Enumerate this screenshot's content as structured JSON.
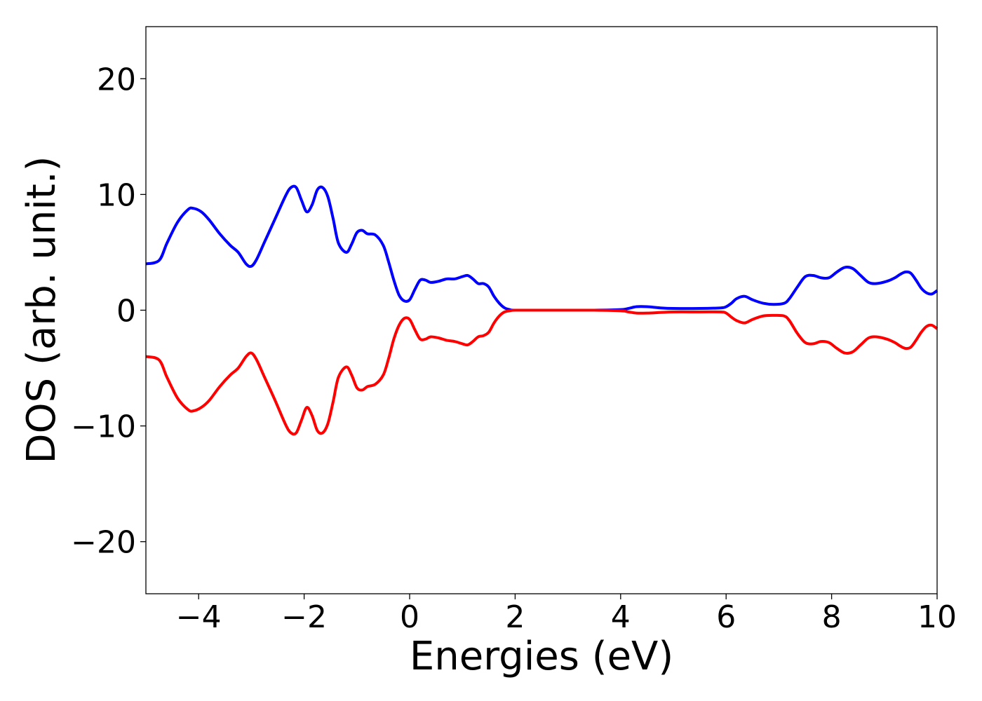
{
  "chart_data": {
    "type": "line",
    "title": "",
    "xlabel": "Energies (eV)",
    "ylabel": "DOS (arb. unit.)",
    "xlim": [
      -5,
      10
    ],
    "ylim": [
      -24.5,
      24.5
    ],
    "xticks": [
      -4,
      -2,
      0,
      2,
      4,
      6,
      8,
      10
    ],
    "xtick_labels": [
      "−4",
      "−2",
      "0",
      "2",
      "4",
      "6",
      "8",
      "10"
    ],
    "yticks": [
      -20,
      -10,
      0,
      10,
      20
    ],
    "ytick_labels": [
      "−20",
      "−10",
      "0",
      "10",
      "20"
    ],
    "grid": false,
    "legend": "none",
    "series": [
      {
        "color": "#0000ff",
        "x": [
          -5.0,
          -4.75,
          -4.6,
          -4.4,
          -4.2,
          -4.1,
          -3.95,
          -3.8,
          -3.6,
          -3.4,
          -3.25,
          -3.1,
          -3.0,
          -2.9,
          -2.75,
          -2.55,
          -2.35,
          -2.25,
          -2.15,
          -2.05,
          -1.95,
          -1.85,
          -1.75,
          -1.65,
          -1.55,
          -1.45,
          -1.35,
          -1.2,
          -1.1,
          -1.0,
          -0.9,
          -0.8,
          -0.65,
          -0.5,
          -0.4,
          -0.3,
          -0.2,
          -0.1,
          0.0,
          0.1,
          0.2,
          0.3,
          0.4,
          0.55,
          0.7,
          0.85,
          1.0,
          1.1,
          1.2,
          1.3,
          1.4,
          1.5,
          1.6,
          1.7,
          1.8,
          1.9,
          2.0,
          2.5,
          3.0,
          3.5,
          4.0,
          4.15,
          4.3,
          4.5,
          4.75,
          5.0,
          5.5,
          5.9,
          6.0,
          6.1,
          6.2,
          6.35,
          6.5,
          6.7,
          6.9,
          7.1,
          7.2,
          7.35,
          7.5,
          7.65,
          7.8,
          7.95,
          8.1,
          8.25,
          8.4,
          8.55,
          8.7,
          8.85,
          9.05,
          9.2,
          9.3,
          9.4,
          9.5,
          9.6,
          9.7,
          9.8,
          9.9,
          10.0
        ],
        "y": [
          4.0,
          4.3,
          5.8,
          7.6,
          8.7,
          8.8,
          8.5,
          7.8,
          6.6,
          5.6,
          5.0,
          4.0,
          3.8,
          4.4,
          5.9,
          7.9,
          9.9,
          10.6,
          10.6,
          9.5,
          8.5,
          9.1,
          10.4,
          10.6,
          9.8,
          7.9,
          5.8,
          5.0,
          5.7,
          6.7,
          6.9,
          6.6,
          6.5,
          5.6,
          4.2,
          2.6,
          1.3,
          0.8,
          0.9,
          1.8,
          2.6,
          2.6,
          2.4,
          2.5,
          2.7,
          2.7,
          2.9,
          3.0,
          2.7,
          2.3,
          2.3,
          2.0,
          1.2,
          0.6,
          0.2,
          0.05,
          0.0,
          0.0,
          0.0,
          0.0,
          0.05,
          0.15,
          0.3,
          0.3,
          0.2,
          0.15,
          0.15,
          0.2,
          0.3,
          0.6,
          1.0,
          1.2,
          0.9,
          0.6,
          0.5,
          0.6,
          1.0,
          2.0,
          2.9,
          3.0,
          2.8,
          2.8,
          3.3,
          3.7,
          3.6,
          3.0,
          2.4,
          2.3,
          2.5,
          2.8,
          3.1,
          3.3,
          3.2,
          2.6,
          1.9,
          1.5,
          1.4,
          1.7
        ]
      },
      {
        "color": "#ff0000",
        "x": [
          -5.0,
          -4.75,
          -4.6,
          -4.4,
          -4.2,
          -4.1,
          -3.95,
          -3.8,
          -3.6,
          -3.4,
          -3.25,
          -3.1,
          -3.0,
          -2.9,
          -2.75,
          -2.55,
          -2.35,
          -2.25,
          -2.15,
          -2.05,
          -1.95,
          -1.85,
          -1.75,
          -1.65,
          -1.55,
          -1.45,
          -1.35,
          -1.2,
          -1.1,
          -1.0,
          -0.9,
          -0.8,
          -0.65,
          -0.5,
          -0.4,
          -0.3,
          -0.2,
          -0.1,
          0.0,
          0.1,
          0.2,
          0.3,
          0.4,
          0.55,
          0.7,
          0.85,
          1.0,
          1.1,
          1.2,
          1.3,
          1.4,
          1.5,
          1.6,
          1.7,
          1.8,
          1.9,
          2.0,
          2.5,
          3.0,
          3.5,
          4.0,
          4.15,
          4.3,
          4.5,
          4.75,
          5.0,
          5.5,
          5.9,
          6.0,
          6.1,
          6.2,
          6.35,
          6.5,
          6.7,
          6.9,
          7.1,
          7.2,
          7.35,
          7.5,
          7.65,
          7.8,
          7.95,
          8.1,
          8.25,
          8.4,
          8.55,
          8.7,
          8.85,
          9.05,
          9.2,
          9.3,
          9.4,
          9.5,
          9.6,
          9.7,
          9.8,
          9.9,
          10.0
        ],
        "y": [
          -4.0,
          -4.3,
          -5.8,
          -7.6,
          -8.6,
          -8.7,
          -8.4,
          -7.8,
          -6.6,
          -5.6,
          -5.0,
          -4.0,
          -3.7,
          -4.3,
          -5.8,
          -7.8,
          -9.9,
          -10.6,
          -10.6,
          -9.5,
          -8.4,
          -9.1,
          -10.4,
          -10.6,
          -9.8,
          -7.9,
          -5.8,
          -4.9,
          -5.6,
          -6.7,
          -6.9,
          -6.6,
          -6.4,
          -5.6,
          -4.2,
          -2.5,
          -1.3,
          -0.7,
          -0.8,
          -1.7,
          -2.5,
          -2.5,
          -2.3,
          -2.4,
          -2.6,
          -2.7,
          -2.9,
          -3.0,
          -2.7,
          -2.3,
          -2.2,
          -1.9,
          -1.1,
          -0.5,
          -0.15,
          -0.05,
          0.0,
          0.0,
          0.0,
          0.0,
          -0.05,
          -0.15,
          -0.25,
          -0.25,
          -0.2,
          -0.15,
          -0.15,
          -0.15,
          -0.25,
          -0.6,
          -0.9,
          -1.1,
          -0.8,
          -0.5,
          -0.45,
          -0.5,
          -0.9,
          -2.0,
          -2.8,
          -2.9,
          -2.7,
          -2.8,
          -3.3,
          -3.7,
          -3.6,
          -3.0,
          -2.4,
          -2.3,
          -2.5,
          -2.8,
          -3.1,
          -3.3,
          -3.2,
          -2.6,
          -1.9,
          -1.4,
          -1.3,
          -1.6
        ]
      }
    ]
  }
}
